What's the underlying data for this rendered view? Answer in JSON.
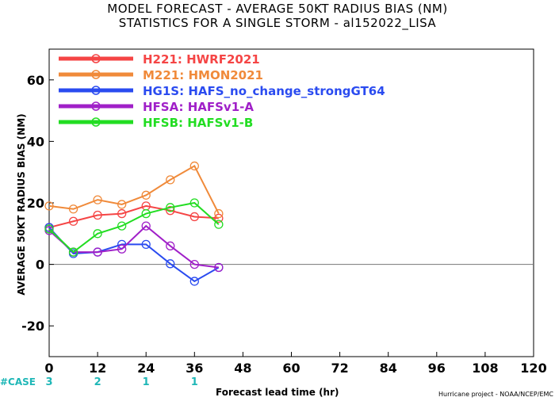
{
  "title_line1": "MODEL FORECAST - AVERAGE 50KT RADIUS BIAS (NM)",
  "title_line2": "STATISTICS FOR A SINGLE STORM - al152022_LISA",
  "credit": "Hurricane project - NOAA/NCEP/EMC",
  "case_label": "#CASE",
  "colors": {
    "case_text": "#1fb7b7",
    "zero_line": "#777777"
  },
  "chart_data": {
    "type": "line",
    "xlabel": "Forecast lead time (hr)",
    "ylabel": "AVERAGE 50KT RADIUS BIAS (NM)",
    "xlim": [
      0,
      120
    ],
    "ylim": [
      -30,
      70
    ],
    "xticks": [
      0,
      12,
      24,
      36,
      48,
      60,
      72,
      84,
      96,
      108,
      120
    ],
    "yticks": [
      -20,
      0,
      20,
      40,
      60
    ],
    "case_counts": [
      {
        "x": 0,
        "n": "3"
      },
      {
        "x": 12,
        "n": "2"
      },
      {
        "x": 24,
        "n": "1"
      },
      {
        "x": 36,
        "n": "1"
      }
    ],
    "legend_position": "top-left",
    "series": [
      {
        "name": "H221: HWRF2021",
        "color": "#f54545",
        "x": [
          0,
          6,
          12,
          18,
          24,
          30,
          36,
          42
        ],
        "y": [
          12,
          14,
          16,
          16.5,
          19,
          17.5,
          15.5,
          15
        ]
      },
      {
        "name": "M221: HMON2021",
        "color": "#f08a3a",
        "x": [
          0,
          6,
          12,
          18,
          24,
          30,
          36,
          42
        ],
        "y": [
          19,
          18,
          21,
          19.5,
          22.5,
          27.5,
          32,
          16.5
        ]
      },
      {
        "name": "HG1S: HAFS_no_change_strongGT64",
        "color": "#2a4bf0",
        "x": [
          0,
          6,
          12,
          18,
          24,
          30,
          36,
          42
        ],
        "y": [
          12,
          3.5,
          4,
          6.5,
          6.5,
          0.2,
          -5.5,
          -1
        ]
      },
      {
        "name": "HFSA: HAFSv1-A",
        "color": "#a020c8",
        "x": [
          0,
          6,
          12,
          18,
          24,
          30,
          36,
          42
        ],
        "y": [
          11,
          4,
          4,
          5,
          12.5,
          6,
          0,
          -1
        ]
      },
      {
        "name": "HFSB: HAFSv1-B",
        "color": "#22dd22",
        "x": [
          0,
          6,
          12,
          18,
          24,
          30,
          36,
          42
        ],
        "y": [
          11.5,
          4,
          10,
          12.5,
          16.5,
          18.5,
          20,
          13
        ]
      }
    ]
  }
}
